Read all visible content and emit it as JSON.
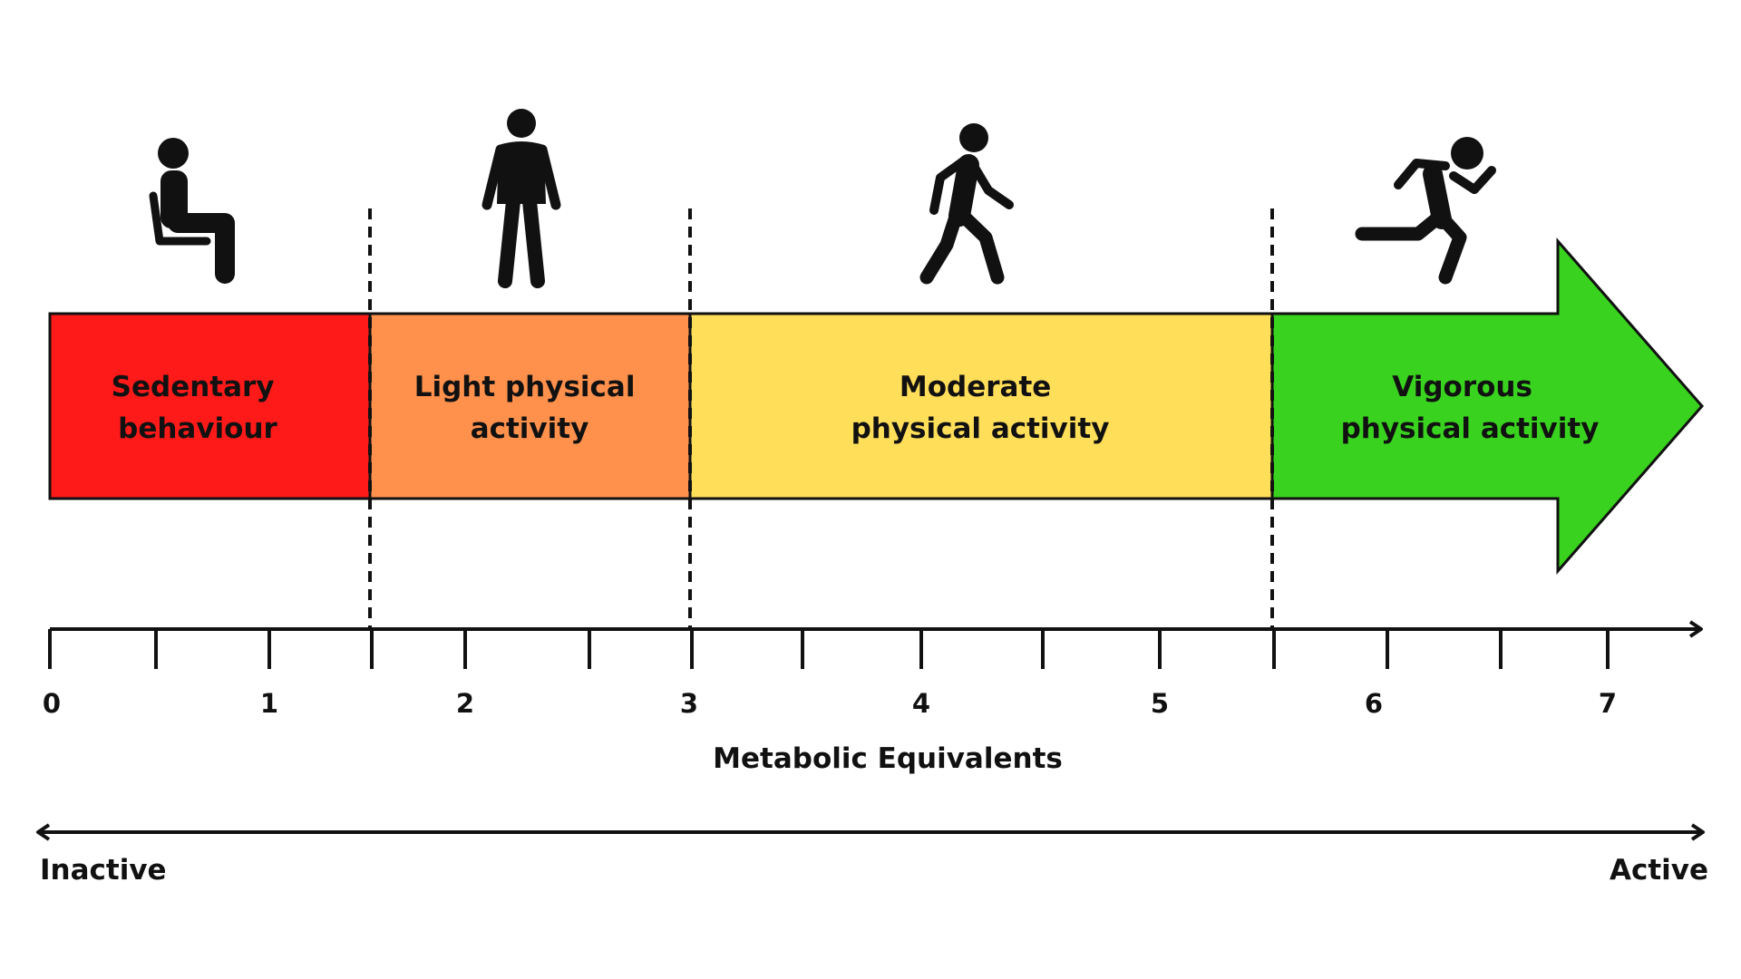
{
  "bands": [
    {
      "line1": "Sedentary",
      "line2": "behaviour",
      "color": "#ff1a1a",
      "icon": "sitting-person-icon"
    },
    {
      "line1": "Light physical",
      "line2": "activity",
      "color": "#ff914d",
      "icon": "standing-person-icon"
    },
    {
      "line1": "Moderate",
      "line2": "physical activity",
      "color": "#ffde59",
      "icon": "walking-person-icon"
    },
    {
      "line1": "Vigorous",
      "line2": "physical activity",
      "color": "#39d31f",
      "icon": "running-person-icon"
    }
  ],
  "scale": {
    "title": "Metabolic Equivalents",
    "tick_labels": [
      "0",
      "1",
      "2",
      "3",
      "4",
      "5",
      "6",
      "7"
    ],
    "thresholds": [
      1.5,
      3,
      6
    ]
  },
  "activity_arrow": {
    "left_label": "Inactive",
    "right_label": "Active"
  },
  "colors": {
    "outline": "#111111",
    "background": "#ffffff"
  }
}
